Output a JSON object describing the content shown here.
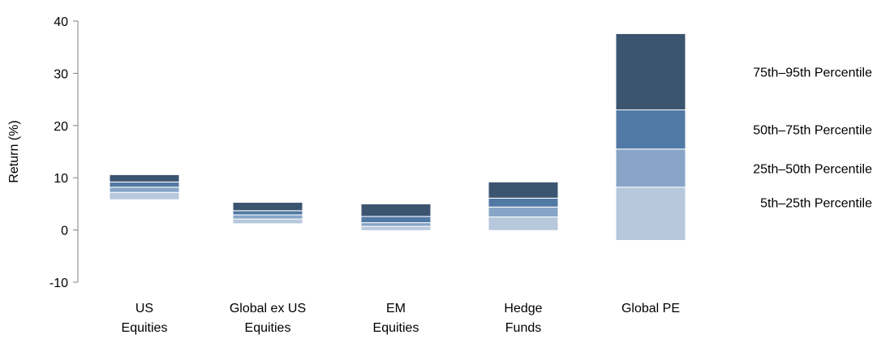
{
  "chart_data": {
    "type": "bar",
    "stacked": "floating-range",
    "ylabel": "Return (%)",
    "ylim": [
      -10,
      40
    ],
    "yticks": [
      -10,
      0,
      10,
      20,
      30,
      40
    ],
    "grid": false,
    "legend_placement": "right of last column",
    "categories": [
      [
        "US",
        "Equities"
      ],
      [
        "Global ex US",
        "Equities"
      ],
      [
        "EM",
        "Equities"
      ],
      [
        "Hedge",
        "Funds"
      ],
      [
        "Global PE"
      ]
    ],
    "series": [
      {
        "name": "5th–25th Percentile",
        "color": "#b7c8dc",
        "low": [
          5.8,
          1.2,
          -0.1,
          -0.1,
          -2.0
        ],
        "high": [
          7.2,
          2.1,
          0.7,
          2.5,
          8.2
        ]
      },
      {
        "name": "25th–50th Percentile",
        "color": "#88a5c7",
        "low": [
          7.2,
          2.1,
          0.7,
          2.5,
          8.2
        ],
        "high": [
          8.2,
          2.9,
          1.4,
          4.4,
          15.5
        ]
      },
      {
        "name": "50th–75th Percentile",
        "color": "#5179a5",
        "low": [
          8.2,
          2.9,
          1.4,
          4.4,
          15.5
        ],
        "high": [
          9.2,
          3.7,
          2.6,
          6.1,
          23.0
        ]
      },
      {
        "name": "75th–95th Percentile",
        "color": "#3b5470",
        "low": [
          9.2,
          3.7,
          2.6,
          6.1,
          23.0
        ],
        "high": [
          10.6,
          5.3,
          5.0,
          9.2,
          37.6
        ]
      }
    ]
  }
}
